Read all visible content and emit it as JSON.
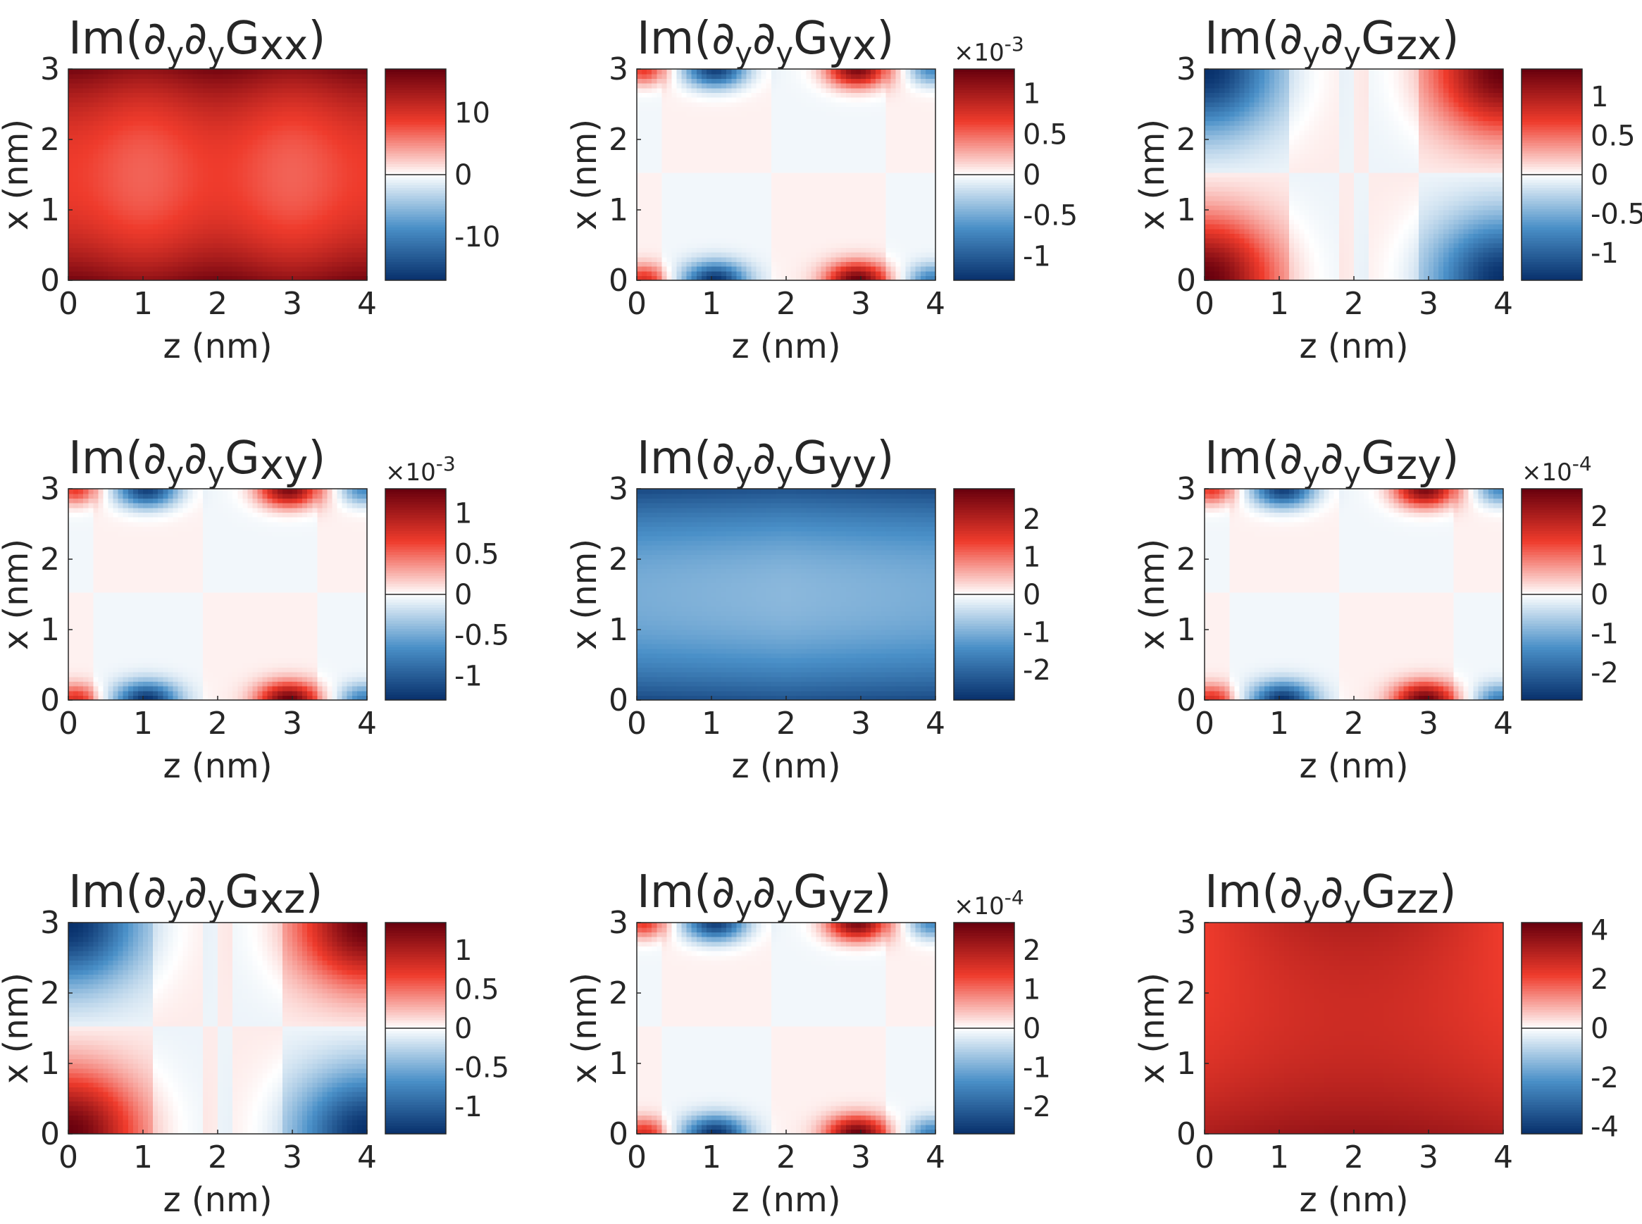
{
  "figure": {
    "colormap": {
      "negative_dark": "#08306b",
      "negative_mid": "#4a90c8",
      "zero": "#ffffff",
      "positive_mid": "#ef3b2c",
      "positive_dark": "#67000d"
    },
    "text_color": "#262626"
  },
  "chart_data": [
    {
      "type": "heatmap",
      "component": "xx",
      "title": "Im(∂y∂yGxx)",
      "title_parts": {
        "prefix": "Im(",
        "d1": "∂",
        "s1": "y",
        "d2": "∂",
        "s2": "y",
        "g": "G",
        "idx": "xx",
        "close": ")"
      },
      "xlabel": "z (nm)",
      "ylabel": "x (nm)",
      "xlim": [
        0,
        4
      ],
      "ylim": [
        0,
        3
      ],
      "xticks": [
        "0",
        "1",
        "2",
        "3",
        "4"
      ],
      "yticks": [
        "0",
        "1",
        "2",
        "3"
      ],
      "colorbar": {
        "range": [
          -17,
          17
        ],
        "ticks": [
          10,
          0,
          -10
        ],
        "tick_labels": [
          "10",
          "0",
          "-10"
        ],
        "multiplier": ""
      },
      "field_pattern": "xx"
    },
    {
      "type": "heatmap",
      "component": "yx",
      "title": "Im(∂y∂yGyx)",
      "title_parts": {
        "prefix": "Im(",
        "d1": "∂",
        "s1": "y",
        "d2": "∂",
        "s2": "y",
        "g": "G",
        "idx": "yx",
        "close": ")"
      },
      "xlabel": "z (nm)",
      "ylabel": "x (nm)",
      "xlim": [
        0,
        4
      ],
      "ylim": [
        0,
        3
      ],
      "xticks": [
        "0",
        "1",
        "2",
        "3",
        "4"
      ],
      "yticks": [
        "0",
        "1",
        "2",
        "3"
      ],
      "colorbar": {
        "range": [
          -1.3,
          1.3
        ],
        "ticks": [
          1,
          0.5,
          0,
          -0.5,
          -1
        ],
        "tick_labels": [
          "1",
          "0.5",
          "0",
          "-0.5",
          "-1"
        ],
        "multiplier": "×10",
        "exponent": "-3"
      },
      "field_pattern": "yx"
    },
    {
      "type": "heatmap",
      "component": "zx",
      "title": "Im(∂y∂yGzx)",
      "title_parts": {
        "prefix": "Im(",
        "d1": "∂",
        "s1": "y",
        "d2": "∂",
        "s2": "y",
        "g": "G",
        "idx": "zx",
        "close": ")"
      },
      "xlabel": "z (nm)",
      "ylabel": "x (nm)",
      "xlim": [
        0,
        4
      ],
      "ylim": [
        0,
        3
      ],
      "xticks": [
        "0",
        "1",
        "2",
        "3",
        "4"
      ],
      "yticks": [
        "0",
        "1",
        "2",
        "3"
      ],
      "colorbar": {
        "range": [
          -1.35,
          1.35
        ],
        "ticks": [
          1,
          0.5,
          0,
          -0.5,
          -1
        ],
        "tick_labels": [
          "1",
          "0.5",
          "0",
          "-0.5",
          "-1"
        ],
        "multiplier": ""
      },
      "field_pattern": "zx"
    },
    {
      "type": "heatmap",
      "component": "xy",
      "title": "Im(∂y∂yGxy)",
      "title_parts": {
        "prefix": "Im(",
        "d1": "∂",
        "s1": "y",
        "d2": "∂",
        "s2": "y",
        "g": "G",
        "idx": "xy",
        "close": ")"
      },
      "xlabel": "z (nm)",
      "ylabel": "x (nm)",
      "xlim": [
        0,
        4
      ],
      "ylim": [
        0,
        3
      ],
      "xticks": [
        "0",
        "1",
        "2",
        "3",
        "4"
      ],
      "yticks": [
        "0",
        "1",
        "2",
        "3"
      ],
      "colorbar": {
        "range": [
          -1.3,
          1.3
        ],
        "ticks": [
          1,
          0.5,
          0,
          -0.5,
          -1
        ],
        "tick_labels": [
          "1",
          "0.5",
          "0",
          "-0.5",
          "-1"
        ],
        "multiplier": "×10",
        "exponent": "-3"
      },
      "field_pattern": "yx"
    },
    {
      "type": "heatmap",
      "component": "yy",
      "title": "Im(∂y∂yGyy)",
      "title_parts": {
        "prefix": "Im(",
        "d1": "∂",
        "s1": "y",
        "d2": "∂",
        "s2": "y",
        "g": "G",
        "idx": "yy",
        "close": ")"
      },
      "xlabel": "z (nm)",
      "ylabel": "x (nm)",
      "xlim": [
        0,
        4
      ],
      "ylim": [
        0,
        3
      ],
      "xticks": [
        "0",
        "1",
        "2",
        "3",
        "4"
      ],
      "yticks": [
        "0",
        "1",
        "2",
        "3"
      ],
      "colorbar": {
        "range": [
          -2.8,
          2.8
        ],
        "ticks": [
          2,
          1,
          0,
          -1,
          -2
        ],
        "tick_labels": [
          "2",
          "1",
          "0",
          "-1",
          "-2"
        ],
        "multiplier": ""
      },
      "field_pattern": "yy"
    },
    {
      "type": "heatmap",
      "component": "zy",
      "title": "Im(∂y∂yGzy)",
      "title_parts": {
        "prefix": "Im(",
        "d1": "∂",
        "s1": "y",
        "d2": "∂",
        "s2": "y",
        "g": "G",
        "idx": "zy",
        "close": ")"
      },
      "xlabel": "z (nm)",
      "ylabel": "x (nm)",
      "xlim": [
        0,
        4
      ],
      "ylim": [
        0,
        3
      ],
      "xticks": [
        "0",
        "1",
        "2",
        "3",
        "4"
      ],
      "yticks": [
        "0",
        "1",
        "2",
        "3"
      ],
      "colorbar": {
        "range": [
          -2.7,
          2.7
        ],
        "ticks": [
          2,
          1,
          0,
          -1,
          -2
        ],
        "tick_labels": [
          "2",
          "1",
          "0",
          "-1",
          "-2"
        ],
        "multiplier": "×10",
        "exponent": "-4"
      },
      "field_pattern": "yx"
    },
    {
      "type": "heatmap",
      "component": "xz",
      "title": "Im(∂y∂yGxz)",
      "title_parts": {
        "prefix": "Im(",
        "d1": "∂",
        "s1": "y",
        "d2": "∂",
        "s2": "y",
        "g": "G",
        "idx": "xz",
        "close": ")"
      },
      "xlabel": "z (nm)",
      "ylabel": "x (nm)",
      "xlim": [
        0,
        4
      ],
      "ylim": [
        0,
        3
      ],
      "xticks": [
        "0",
        "1",
        "2",
        "3",
        "4"
      ],
      "yticks": [
        "0",
        "1",
        "2",
        "3"
      ],
      "colorbar": {
        "range": [
          -1.35,
          1.35
        ],
        "ticks": [
          1,
          0.5,
          0,
          -0.5,
          -1
        ],
        "tick_labels": [
          "1",
          "0.5",
          "0",
          "-0.5",
          "-1"
        ],
        "multiplier": ""
      },
      "field_pattern": "zx"
    },
    {
      "type": "heatmap",
      "component": "yz",
      "title": "Im(∂y∂yGyz)",
      "title_parts": {
        "prefix": "Im(",
        "d1": "∂",
        "s1": "y",
        "d2": "∂",
        "s2": "y",
        "g": "G",
        "idx": "yz",
        "close": ")"
      },
      "xlabel": "z (nm)",
      "ylabel": "x (nm)",
      "xlim": [
        0,
        4
      ],
      "ylim": [
        0,
        3
      ],
      "xticks": [
        "0",
        "1",
        "2",
        "3",
        "4"
      ],
      "yticks": [
        "0",
        "1",
        "2",
        "3"
      ],
      "colorbar": {
        "range": [
          -2.7,
          2.7
        ],
        "ticks": [
          2,
          1,
          0,
          -1,
          -2
        ],
        "tick_labels": [
          "2",
          "1",
          "0",
          "-1",
          "-2"
        ],
        "multiplier": "×10",
        "exponent": "-4"
      },
      "field_pattern": "yx"
    },
    {
      "type": "heatmap",
      "component": "zz",
      "title": "Im(∂y∂yGzz)",
      "title_parts": {
        "prefix": "Im(",
        "d1": "∂",
        "s1": "y",
        "d2": "∂",
        "s2": "y",
        "g": "G",
        "idx": "zz",
        "close": ")"
      },
      "xlabel": "z (nm)",
      "ylabel": "x (nm)",
      "xlim": [
        0,
        4
      ],
      "ylim": [
        0,
        3
      ],
      "xticks": [
        "0",
        "1",
        "2",
        "3",
        "4"
      ],
      "yticks": [
        "0",
        "1",
        "2",
        "3"
      ],
      "colorbar": {
        "range": [
          -4.3,
          4.3
        ],
        "ticks": [
          4,
          2,
          0,
          -2,
          -4
        ],
        "tick_labels": [
          "4",
          "2",
          "0",
          "-2",
          "-4"
        ],
        "multiplier": ""
      },
      "field_pattern": "zz"
    }
  ]
}
